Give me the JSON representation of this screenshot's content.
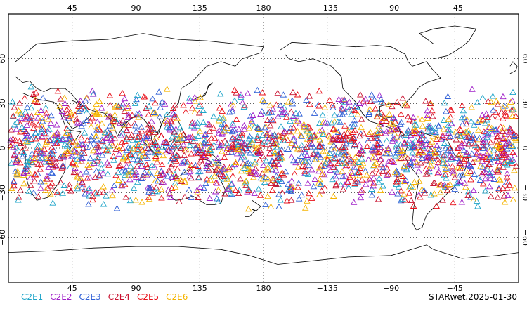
{
  "map": {
    "projection": "cylindrical equidistant, Pacific-centered",
    "lon_range": [
      0,
      360
    ],
    "lat_range": [
      -90,
      90
    ],
    "grid": true,
    "lon_ticks": [
      {
        "lon": 45,
        "label": "45"
      },
      {
        "lon": 90,
        "label": "90"
      },
      {
        "lon": 135,
        "label": "135"
      },
      {
        "lon": 180,
        "label": "180"
      },
      {
        "lon": 225,
        "label": "−135"
      },
      {
        "lon": 270,
        "label": "−90"
      },
      {
        "lon": 315,
        "label": "−45"
      }
    ],
    "lat_ticks": [
      {
        "lat": 60,
        "label": "60"
      },
      {
        "lat": 30,
        "label": "30"
      },
      {
        "lat": 0,
        "label": "0"
      },
      {
        "lat": -30,
        "label": "−30"
      },
      {
        "lat": -60,
        "label": "−60"
      }
    ],
    "marker": "open-triangle",
    "point_lat_band": [
      -40,
      40
    ]
  },
  "legend": {
    "items": [
      {
        "label": "C2E1",
        "color": "#1fa5c9"
      },
      {
        "label": "C2E2",
        "color": "#a020c8"
      },
      {
        "label": "C2E3",
        "color": "#2f5fd6"
      },
      {
        "label": "C2E4",
        "color": "#c8102e"
      },
      {
        "label": "C2E5",
        "color": "#e8101a"
      },
      {
        "label": "C2E6",
        "color": "#f5b400"
      }
    ]
  },
  "stamp": "STARwet.2025-01-30"
}
